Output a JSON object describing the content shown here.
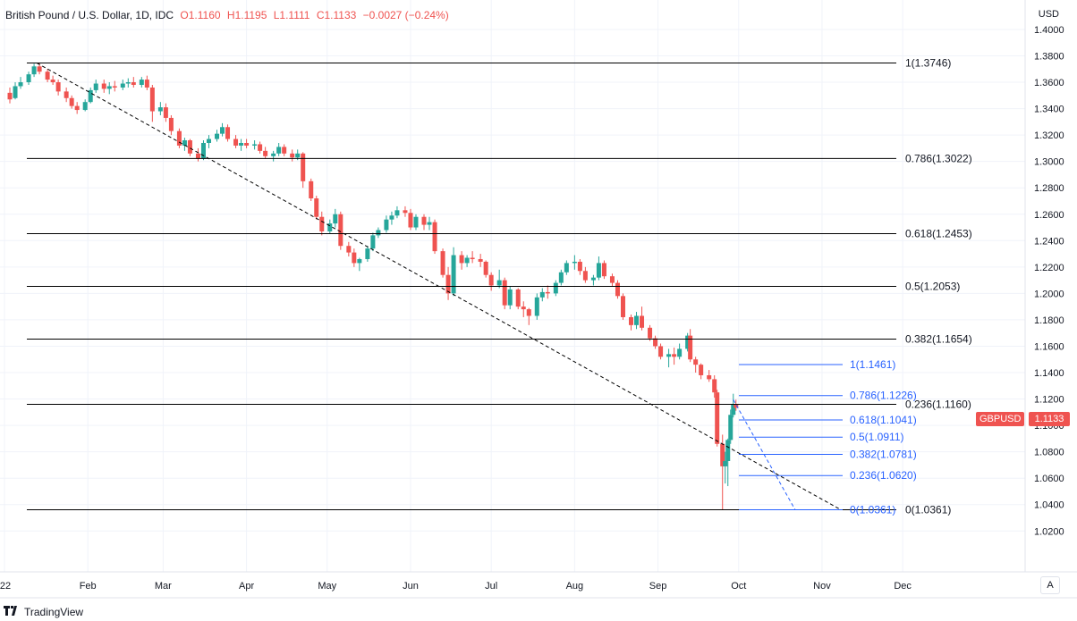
{
  "header": {
    "symbol": "British Pound / U.S. Dollar, 1D, IDC",
    "open": "O1.1160",
    "high": "H1.1195",
    "low": "L1.1111",
    "close": "C1.1133",
    "change": "−0.0027 (−0.24%)"
  },
  "currency": "USD",
  "brand": "TradingView",
  "auto_button": "A",
  "price_tag": {
    "symbol": "GBPUSD",
    "value": "1.1133"
  },
  "colors": {
    "up": "#26a69a",
    "down": "#ef5350",
    "fib_major": "#000000",
    "fib_minor": "#2962ff",
    "tag": "#ef5350"
  },
  "chart_data": {
    "type": "candlestick",
    "x_labels": [
      "'22",
      "Feb",
      "Mar",
      "Apr",
      "May",
      "Jun",
      "Jul",
      "Aug",
      "Sep",
      "Oct",
      "Nov",
      "Dec"
    ],
    "y_ticks": [
      "1.4000",
      "1.3800",
      "1.3600",
      "1.3400",
      "1.3200",
      "1.3000",
      "1.2800",
      "1.2600",
      "1.2400",
      "1.2200",
      "1.2000",
      "1.1800",
      "1.1600",
      "1.1400",
      "1.1200",
      "1.1000",
      "1.0800",
      "1.0600",
      "1.0400",
      "1.0200"
    ],
    "ylim": [
      1.008,
      1.402
    ],
    "fib_major": [
      {
        "ratio": "1",
        "price": 1.3746,
        "label": "1(1.3746)"
      },
      {
        "ratio": "0.786",
        "price": 1.3022,
        "label": "0.786(1.3022)"
      },
      {
        "ratio": "0.618",
        "price": 1.2453,
        "label": "0.618(1.2453)"
      },
      {
        "ratio": "0.5",
        "price": 1.2053,
        "label": "0.5(1.2053)"
      },
      {
        "ratio": "0.382",
        "price": 1.1654,
        "label": "0.382(1.1654)"
      },
      {
        "ratio": "0.236",
        "price": 1.116,
        "label": "0.236(1.1160)"
      },
      {
        "ratio": "0",
        "price": 1.0361,
        "label": "0(1.0361)"
      }
    ],
    "fib_minor": [
      {
        "ratio": "1",
        "price": 1.1461,
        "label": "1(1.1461)"
      },
      {
        "ratio": "0.786",
        "price": 1.1226,
        "label": "0.786(1.1226)"
      },
      {
        "ratio": "0.618",
        "price": 1.1041,
        "label": "0.618(1.1041)"
      },
      {
        "ratio": "0.5",
        "price": 1.0911,
        "label": "0.5(1.0911)"
      },
      {
        "ratio": "0.382",
        "price": 1.0781,
        "label": "0.382(1.0781)"
      },
      {
        "ratio": "0.236",
        "price": 1.062,
        "label": "0.236(1.0620)"
      },
      {
        "ratio": "0",
        "price": 1.0361,
        "label": "0(1.0361)"
      }
    ],
    "trendline": {
      "from": {
        "date": "2022-01-13",
        "price": 1.3746
      },
      "to": {
        "date": "2022-11-08",
        "price": 1.0361
      }
    },
    "trendline2": {
      "from": {
        "date": "2022-09-29",
        "price": 1.1195
      },
      "to": {
        "date": "2022-10-22",
        "price": 1.0361
      }
    },
    "series": [
      {
        "date": "2022-01-03",
        "o": 1.352,
        "h": 1.356,
        "l": 1.344,
        "c": 1.347
      },
      {
        "date": "2022-01-05",
        "o": 1.348,
        "h": 1.36,
        "l": 1.347,
        "c": 1.357
      },
      {
        "date": "2022-01-07",
        "o": 1.357,
        "h": 1.364,
        "l": 1.355,
        "c": 1.36
      },
      {
        "date": "2022-01-10",
        "o": 1.36,
        "h": 1.368,
        "l": 1.358,
        "c": 1.366
      },
      {
        "date": "2022-01-12",
        "o": 1.366,
        "h": 1.374,
        "l": 1.364,
        "c": 1.372
      },
      {
        "date": "2022-01-14",
        "o": 1.372,
        "h": 1.3746,
        "l": 1.366,
        "c": 1.368
      },
      {
        "date": "2022-01-17",
        "o": 1.368,
        "h": 1.37,
        "l": 1.36,
        "c": 1.362
      },
      {
        "date": "2022-01-19",
        "o": 1.362,
        "h": 1.365,
        "l": 1.358,
        "c": 1.36
      },
      {
        "date": "2022-01-21",
        "o": 1.36,
        "h": 1.362,
        "l": 1.35,
        "c": 1.353
      },
      {
        "date": "2022-01-24",
        "o": 1.353,
        "h": 1.356,
        "l": 1.345,
        "c": 1.348
      },
      {
        "date": "2022-01-26",
        "o": 1.348,
        "h": 1.35,
        "l": 1.34,
        "c": 1.342
      },
      {
        "date": "2022-01-28",
        "o": 1.342,
        "h": 1.345,
        "l": 1.336,
        "c": 1.339
      },
      {
        "date": "2022-01-31",
        "o": 1.339,
        "h": 1.347,
        "l": 1.338,
        "c": 1.345
      },
      {
        "date": "2022-02-02",
        "o": 1.345,
        "h": 1.356,
        "l": 1.344,
        "c": 1.354
      },
      {
        "date": "2022-02-04",
        "o": 1.354,
        "h": 1.362,
        "l": 1.352,
        "c": 1.359
      },
      {
        "date": "2022-02-07",
        "o": 1.359,
        "h": 1.362,
        "l": 1.352,
        "c": 1.355
      },
      {
        "date": "2022-02-09",
        "o": 1.355,
        "h": 1.36,
        "l": 1.351,
        "c": 1.357
      },
      {
        "date": "2022-02-11",
        "o": 1.357,
        "h": 1.361,
        "l": 1.353,
        "c": 1.356
      },
      {
        "date": "2022-02-14",
        "o": 1.356,
        "h": 1.362,
        "l": 1.354,
        "c": 1.359
      },
      {
        "date": "2022-02-16",
        "o": 1.359,
        "h": 1.363,
        "l": 1.356,
        "c": 1.36
      },
      {
        "date": "2022-02-18",
        "o": 1.36,
        "h": 1.364,
        "l": 1.356,
        "c": 1.358
      },
      {
        "date": "2022-02-21",
        "o": 1.358,
        "h": 1.364,
        "l": 1.356,
        "c": 1.362
      },
      {
        "date": "2022-02-23",
        "o": 1.362,
        "h": 1.365,
        "l": 1.354,
        "c": 1.356
      },
      {
        "date": "2022-02-25",
        "o": 1.356,
        "h": 1.358,
        "l": 1.33,
        "c": 1.338
      },
      {
        "date": "2022-02-28",
        "o": 1.338,
        "h": 1.345,
        "l": 1.335,
        "c": 1.341
      },
      {
        "date": "2022-03-02",
        "o": 1.341,
        "h": 1.344,
        "l": 1.33,
        "c": 1.333
      },
      {
        "date": "2022-03-04",
        "o": 1.333,
        "h": 1.335,
        "l": 1.32,
        "c": 1.323
      },
      {
        "date": "2022-03-07",
        "o": 1.323,
        "h": 1.325,
        "l": 1.31,
        "c": 1.312
      },
      {
        "date": "2022-03-09",
        "o": 1.312,
        "h": 1.318,
        "l": 1.308,
        "c": 1.316
      },
      {
        "date": "2022-03-11",
        "o": 1.316,
        "h": 1.317,
        "l": 1.304,
        "c": 1.306
      },
      {
        "date": "2022-03-14",
        "o": 1.306,
        "h": 1.31,
        "l": 1.3,
        "c": 1.302
      },
      {
        "date": "2022-03-16",
        "o": 1.302,
        "h": 1.316,
        "l": 1.301,
        "c": 1.314
      },
      {
        "date": "2022-03-18",
        "o": 1.314,
        "h": 1.32,
        "l": 1.31,
        "c": 1.317
      },
      {
        "date": "2022-03-21",
        "o": 1.317,
        "h": 1.324,
        "l": 1.315,
        "c": 1.321
      },
      {
        "date": "2022-03-23",
        "o": 1.321,
        "h": 1.329,
        "l": 1.319,
        "c": 1.326
      },
      {
        "date": "2022-03-25",
        "o": 1.326,
        "h": 1.328,
        "l": 1.315,
        "c": 1.317
      },
      {
        "date": "2022-03-28",
        "o": 1.317,
        "h": 1.32,
        "l": 1.31,
        "c": 1.312
      },
      {
        "date": "2022-03-30",
        "o": 1.312,
        "h": 1.317,
        "l": 1.308,
        "c": 1.314
      },
      {
        "date": "2022-04-01",
        "o": 1.314,
        "h": 1.317,
        "l": 1.31,
        "c": 1.312
      },
      {
        "date": "2022-04-04",
        "o": 1.312,
        "h": 1.316,
        "l": 1.309,
        "c": 1.313
      },
      {
        "date": "2022-04-06",
        "o": 1.313,
        "h": 1.315,
        "l": 1.306,
        "c": 1.308
      },
      {
        "date": "2022-04-08",
        "o": 1.308,
        "h": 1.311,
        "l": 1.302,
        "c": 1.304
      },
      {
        "date": "2022-04-11",
        "o": 1.304,
        "h": 1.308,
        "l": 1.3,
        "c": 1.306
      },
      {
        "date": "2022-04-13",
        "o": 1.306,
        "h": 1.314,
        "l": 1.304,
        "c": 1.311
      },
      {
        "date": "2022-04-15",
        "o": 1.311,
        "h": 1.313,
        "l": 1.304,
        "c": 1.306
      },
      {
        "date": "2022-04-18",
        "o": 1.306,
        "h": 1.309,
        "l": 1.3,
        "c": 1.303
      },
      {
        "date": "2022-04-20",
        "o": 1.303,
        "h": 1.309,
        "l": 1.301,
        "c": 1.306
      },
      {
        "date": "2022-04-22",
        "o": 1.306,
        "h": 1.307,
        "l": 1.28,
        "c": 1.285
      },
      {
        "date": "2022-04-25",
        "o": 1.285,
        "h": 1.287,
        "l": 1.27,
        "c": 1.272
      },
      {
        "date": "2022-04-27",
        "o": 1.272,
        "h": 1.274,
        "l": 1.256,
        "c": 1.258
      },
      {
        "date": "2022-04-29",
        "o": 1.258,
        "h": 1.262,
        "l": 1.244,
        "c": 1.247
      },
      {
        "date": "2022-05-02",
        "o": 1.247,
        "h": 1.256,
        "l": 1.245,
        "c": 1.253
      },
      {
        "date": "2022-05-04",
        "o": 1.253,
        "h": 1.264,
        "l": 1.25,
        "c": 1.26
      },
      {
        "date": "2022-05-06",
        "o": 1.26,
        "h": 1.262,
        "l": 1.233,
        "c": 1.236
      },
      {
        "date": "2022-05-09",
        "o": 1.236,
        "h": 1.239,
        "l": 1.228,
        "c": 1.231
      },
      {
        "date": "2022-05-11",
        "o": 1.231,
        "h": 1.234,
        "l": 1.22,
        "c": 1.223
      },
      {
        "date": "2022-05-13",
        "o": 1.223,
        "h": 1.227,
        "l": 1.217,
        "c": 1.226
      },
      {
        "date": "2022-05-16",
        "o": 1.226,
        "h": 1.236,
        "l": 1.224,
        "c": 1.234
      },
      {
        "date": "2022-05-18",
        "o": 1.234,
        "h": 1.246,
        "l": 1.232,
        "c": 1.244
      },
      {
        "date": "2022-05-20",
        "o": 1.244,
        "h": 1.25,
        "l": 1.242,
        "c": 1.248
      },
      {
        "date": "2022-05-23",
        "o": 1.248,
        "h": 1.259,
        "l": 1.246,
        "c": 1.256
      },
      {
        "date": "2022-05-25",
        "o": 1.256,
        "h": 1.262,
        "l": 1.252,
        "c": 1.259
      },
      {
        "date": "2022-05-27",
        "o": 1.259,
        "h": 1.266,
        "l": 1.257,
        "c": 1.263
      },
      {
        "date": "2022-05-30",
        "o": 1.263,
        "h": 1.266,
        "l": 1.258,
        "c": 1.261
      },
      {
        "date": "2022-06-01",
        "o": 1.261,
        "h": 1.264,
        "l": 1.248,
        "c": 1.25
      },
      {
        "date": "2022-06-03",
        "o": 1.25,
        "h": 1.26,
        "l": 1.248,
        "c": 1.258
      },
      {
        "date": "2022-06-06",
        "o": 1.258,
        "h": 1.26,
        "l": 1.248,
        "c": 1.252
      },
      {
        "date": "2022-06-08",
        "o": 1.252,
        "h": 1.258,
        "l": 1.248,
        "c": 1.254
      },
      {
        "date": "2022-06-10",
        "o": 1.254,
        "h": 1.256,
        "l": 1.23,
        "c": 1.232
      },
      {
        "date": "2022-06-13",
        "o": 1.232,
        "h": 1.234,
        "l": 1.212,
        "c": 1.214
      },
      {
        "date": "2022-06-15",
        "o": 1.214,
        "h": 1.22,
        "l": 1.195,
        "c": 1.2
      },
      {
        "date": "2022-06-17",
        "o": 1.2,
        "h": 1.235,
        "l": 1.198,
        "c": 1.229
      },
      {
        "date": "2022-06-20",
        "o": 1.229,
        "h": 1.232,
        "l": 1.218,
        "c": 1.223
      },
      {
        "date": "2022-06-22",
        "o": 1.223,
        "h": 1.229,
        "l": 1.22,
        "c": 1.227
      },
      {
        "date": "2022-06-24",
        "o": 1.227,
        "h": 1.232,
        "l": 1.223,
        "c": 1.226
      },
      {
        "date": "2022-06-27",
        "o": 1.226,
        "h": 1.23,
        "l": 1.22,
        "c": 1.224
      },
      {
        "date": "2022-06-29",
        "o": 1.224,
        "h": 1.225,
        "l": 1.212,
        "c": 1.214
      },
      {
        "date": "2022-07-01",
        "o": 1.214,
        "h": 1.216,
        "l": 1.202,
        "c": 1.206
      },
      {
        "date": "2022-07-04",
        "o": 1.206,
        "h": 1.218,
        "l": 1.204,
        "c": 1.21
      },
      {
        "date": "2022-07-06",
        "o": 1.21,
        "h": 1.212,
        "l": 1.188,
        "c": 1.191
      },
      {
        "date": "2022-07-08",
        "o": 1.191,
        "h": 1.205,
        "l": 1.188,
        "c": 1.203
      },
      {
        "date": "2022-07-11",
        "o": 1.203,
        "h": 1.204,
        "l": 1.188,
        "c": 1.19
      },
      {
        "date": "2022-07-13",
        "o": 1.19,
        "h": 1.194,
        "l": 1.182,
        "c": 1.188
      },
      {
        "date": "2022-07-15",
        "o": 1.188,
        "h": 1.189,
        "l": 1.176,
        "c": 1.183
      },
      {
        "date": "2022-07-18",
        "o": 1.183,
        "h": 1.2,
        "l": 1.18,
        "c": 1.197
      },
      {
        "date": "2022-07-20",
        "o": 1.197,
        "h": 1.204,
        "l": 1.194,
        "c": 1.201
      },
      {
        "date": "2022-07-22",
        "o": 1.201,
        "h": 1.206,
        "l": 1.196,
        "c": 1.2
      },
      {
        "date": "2022-07-25",
        "o": 1.2,
        "h": 1.21,
        "l": 1.198,
        "c": 1.208
      },
      {
        "date": "2022-07-27",
        "o": 1.208,
        "h": 1.218,
        "l": 1.206,
        "c": 1.216
      },
      {
        "date": "2022-07-29",
        "o": 1.216,
        "h": 1.225,
        "l": 1.214,
        "c": 1.223
      },
      {
        "date": "2022-08-01",
        "o": 1.223,
        "h": 1.229,
        "l": 1.218,
        "c": 1.224
      },
      {
        "date": "2022-08-03",
        "o": 1.224,
        "h": 1.226,
        "l": 1.214,
        "c": 1.217
      },
      {
        "date": "2022-08-05",
        "o": 1.217,
        "h": 1.22,
        "l": 1.208,
        "c": 1.21
      },
      {
        "date": "2022-08-08",
        "o": 1.21,
        "h": 1.214,
        "l": 1.206,
        "c": 1.212
      },
      {
        "date": "2022-08-10",
        "o": 1.212,
        "h": 1.228,
        "l": 1.21,
        "c": 1.223
      },
      {
        "date": "2022-08-12",
        "o": 1.223,
        "h": 1.225,
        "l": 1.211,
        "c": 1.213
      },
      {
        "date": "2022-08-15",
        "o": 1.213,
        "h": 1.215,
        "l": 1.205,
        "c": 1.208
      },
      {
        "date": "2022-08-17",
        "o": 1.208,
        "h": 1.21,
        "l": 1.196,
        "c": 1.198
      },
      {
        "date": "2022-08-19",
        "o": 1.198,
        "h": 1.2,
        "l": 1.18,
        "c": 1.182
      },
      {
        "date": "2022-08-22",
        "o": 1.182,
        "h": 1.184,
        "l": 1.172,
        "c": 1.176
      },
      {
        "date": "2022-08-24",
        "o": 1.176,
        "h": 1.186,
        "l": 1.173,
        "c": 1.183
      },
      {
        "date": "2022-08-26",
        "o": 1.183,
        "h": 1.19,
        "l": 1.172,
        "c": 1.174
      },
      {
        "date": "2022-08-29",
        "o": 1.174,
        "h": 1.176,
        "l": 1.164,
        "c": 1.166
      },
      {
        "date": "2022-08-31",
        "o": 1.166,
        "h": 1.168,
        "l": 1.158,
        "c": 1.16
      },
      {
        "date": "2022-09-02",
        "o": 1.16,
        "h": 1.162,
        "l": 1.15,
        "c": 1.152
      },
      {
        "date": "2022-09-05",
        "o": 1.152,
        "h": 1.158,
        "l": 1.144,
        "c": 1.154
      },
      {
        "date": "2022-09-07",
        "o": 1.154,
        "h": 1.159,
        "l": 1.146,
        "c": 1.152
      },
      {
        "date": "2022-09-09",
        "o": 1.152,
        "h": 1.162,
        "l": 1.15,
        "c": 1.158
      },
      {
        "date": "2022-09-12",
        "o": 1.158,
        "h": 1.17,
        "l": 1.156,
        "c": 1.168
      },
      {
        "date": "2022-09-13",
        "o": 1.168,
        "h": 1.173,
        "l": 1.148,
        "c": 1.15
      },
      {
        "date": "2022-09-15",
        "o": 1.15,
        "h": 1.152,
        "l": 1.14,
        "c": 1.146
      },
      {
        "date": "2022-09-17",
        "o": 1.146,
        "h": 1.147,
        "l": 1.135,
        "c": 1.138
      },
      {
        "date": "2022-09-20",
        "o": 1.138,
        "h": 1.142,
        "l": 1.133,
        "c": 1.135
      },
      {
        "date": "2022-09-22",
        "o": 1.135,
        "h": 1.138,
        "l": 1.121,
        "c": 1.125
      },
      {
        "date": "2022-09-23",
        "o": 1.125,
        "h": 1.127,
        "l": 1.084,
        "c": 1.086
      },
      {
        "date": "2022-09-25",
        "o": 1.086,
        "h": 1.093,
        "l": 1.0361,
        "c": 1.069
      },
      {
        "date": "2022-09-26",
        "o": 1.069,
        "h": 1.08,
        "l": 1.056,
        "c": 1.073
      },
      {
        "date": "2022-09-27",
        "o": 1.073,
        "h": 1.09,
        "l": 1.054,
        "c": 1.089
      },
      {
        "date": "2022-09-28",
        "o": 1.089,
        "h": 1.112,
        "l": 1.086,
        "c": 1.108
      },
      {
        "date": "2022-09-29",
        "o": 1.108,
        "h": 1.124,
        "l": 1.106,
        "c": 1.116
      },
      {
        "date": "2022-09-30",
        "o": 1.116,
        "h": 1.1195,
        "l": 1.1111,
        "c": 1.1133
      }
    ]
  }
}
